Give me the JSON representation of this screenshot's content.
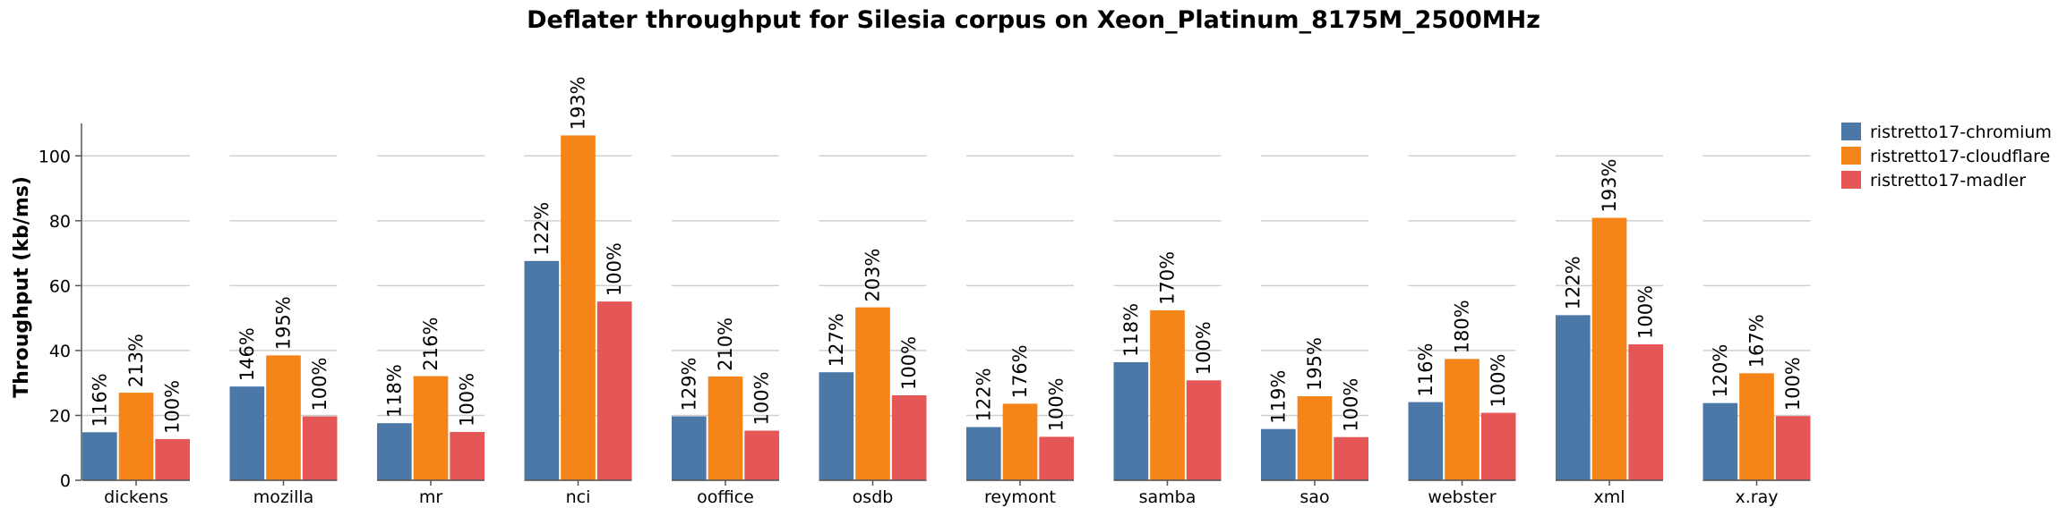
{
  "chart_data": {
    "type": "bar",
    "title": "Deflater throughput for Silesia corpus on Xeon_Platinum_8175M_2500MHz",
    "xlabel": "",
    "ylabel": "Throughput (kb/ms)",
    "ylim": [
      0,
      110
    ],
    "yticks": [
      0,
      20,
      40,
      60,
      80,
      100
    ],
    "grid": true,
    "legend_position": "right",
    "categories": [
      "dickens",
      "mozilla",
      "mr",
      "nci",
      "ooffice",
      "osdb",
      "reymont",
      "samba",
      "sao",
      "webster",
      "xml",
      "x.ray"
    ],
    "series": [
      {
        "name": "ristretto17-chromium",
        "color": "#4c78a8",
        "values": [
          14.8,
          28.9,
          17.6,
          67.6,
          19.7,
          33.3,
          16.4,
          36.4,
          15.8,
          24.1,
          50.9,
          23.8
        ],
        "labels": [
          "116%",
          "146%",
          "118%",
          "122%",
          "129%",
          "127%",
          "122%",
          "118%",
          "119%",
          "116%",
          "122%",
          "120%"
        ]
      },
      {
        "name": "ristretto17-cloudflare",
        "color": "#f58518",
        "values": [
          27.0,
          38.5,
          32.1,
          106.3,
          32.0,
          53.3,
          23.6,
          52.4,
          25.9,
          37.4,
          80.9,
          33.0
        ],
        "labels": [
          "213%",
          "195%",
          "216%",
          "193%",
          "210%",
          "203%",
          "176%",
          "170%",
          "195%",
          "180%",
          "193%",
          "167%"
        ]
      },
      {
        "name": "ristretto17-madler",
        "color": "#e45756",
        "values": [
          12.7,
          19.7,
          14.9,
          55.1,
          15.3,
          26.2,
          13.4,
          30.8,
          13.3,
          20.8,
          41.9,
          19.8
        ],
        "labels": [
          "100%",
          "100%",
          "100%",
          "100%",
          "100%",
          "100%",
          "100%",
          "100%",
          "100%",
          "100%",
          "100%",
          "100%"
        ]
      }
    ]
  }
}
